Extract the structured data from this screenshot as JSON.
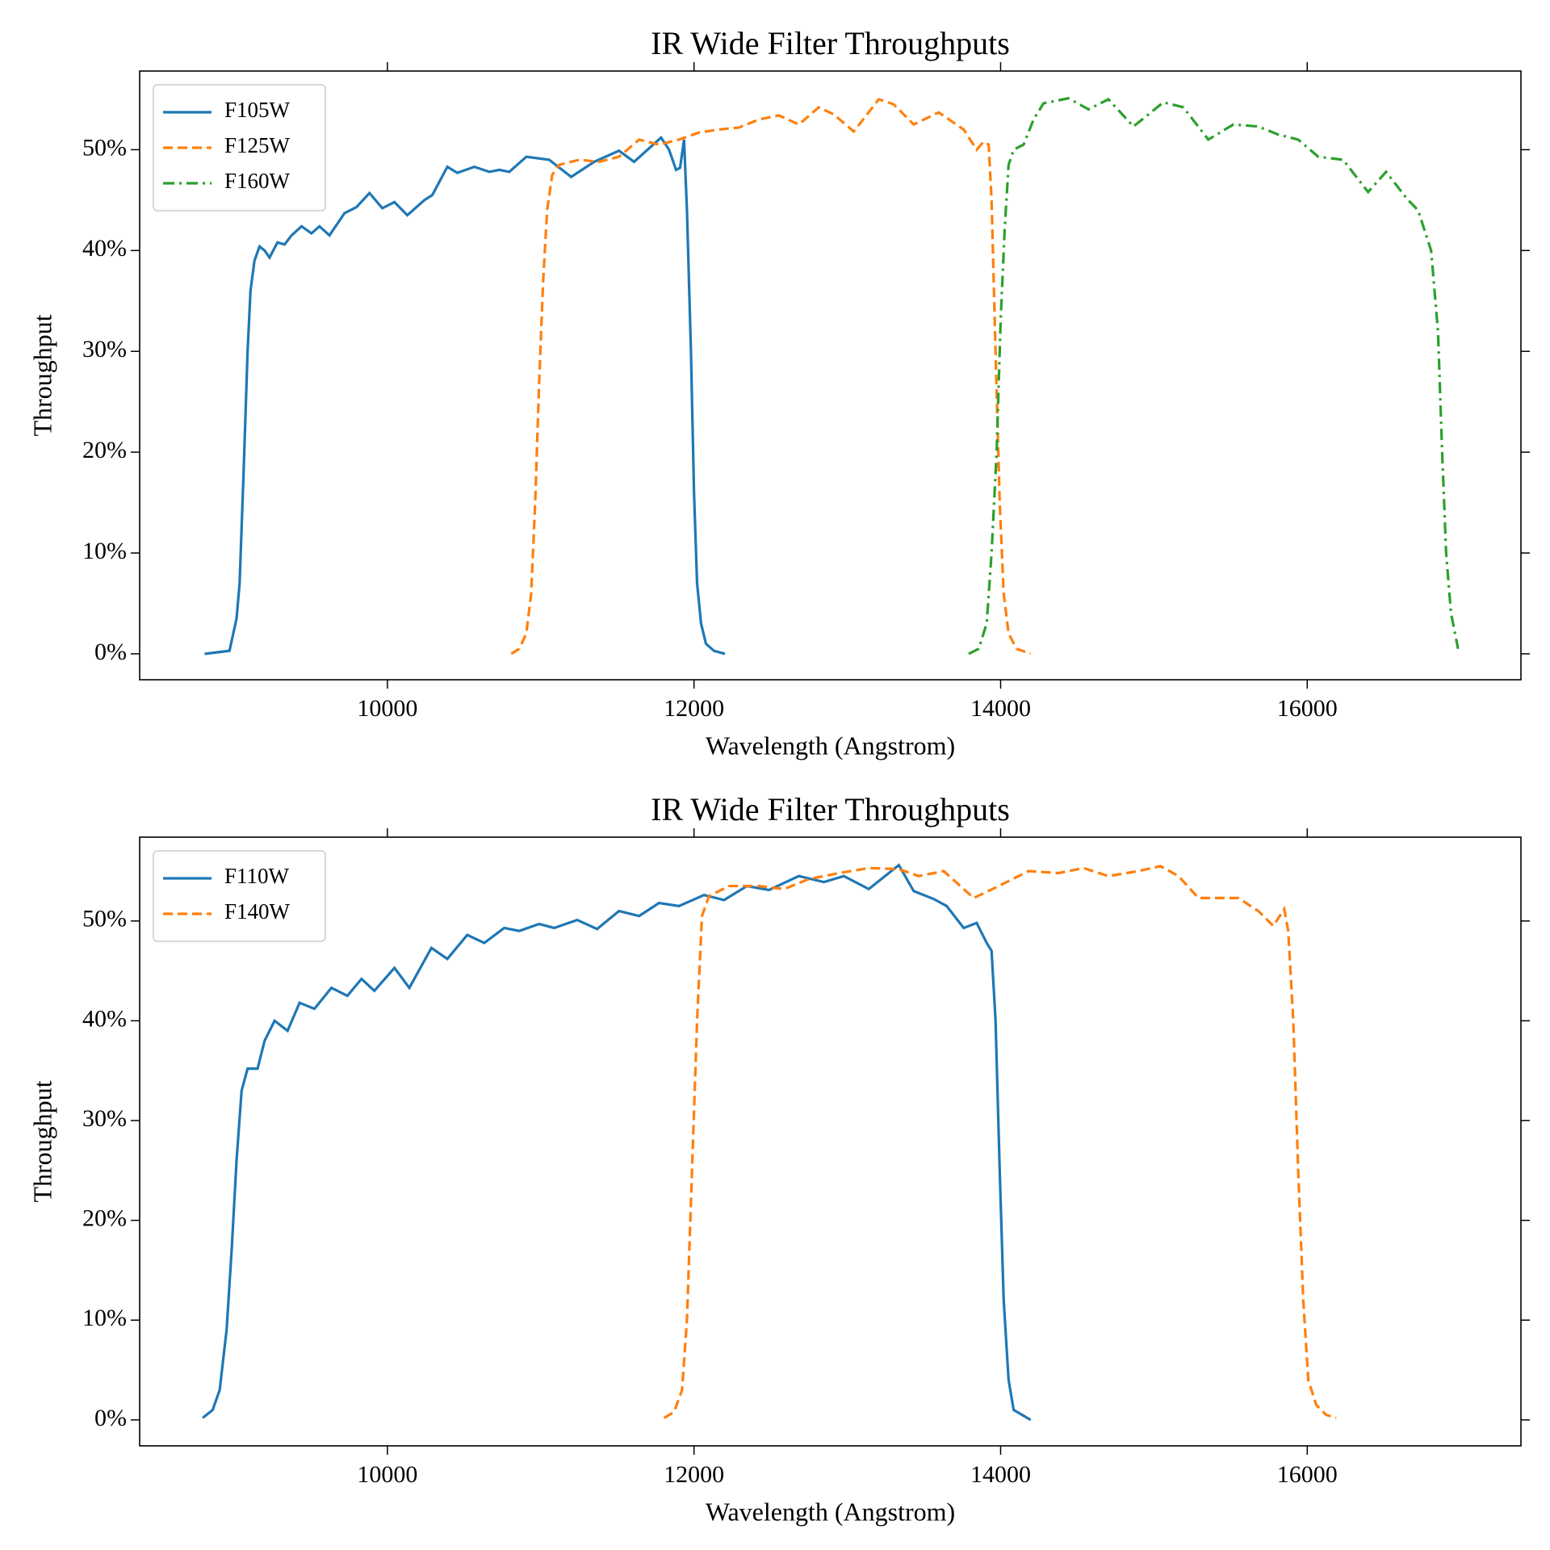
{
  "chart_data": [
    {
      "type": "line",
      "title": "IR Wide Filter Throughputs",
      "xlabel": "Wavelength (Angstrom)",
      "ylabel": "Throughput",
      "xlim": [
        8384,
        17394
      ],
      "xticks": [
        10000,
        12000,
        14000,
        16000
      ],
      "ylim": [
        -2.57,
        57.8
      ],
      "yticks": [
        {
          "value": 0,
          "label": "0%"
        },
        {
          "value": 10,
          "label": "10%"
        },
        {
          "value": 20,
          "label": "20%"
        },
        {
          "value": 30,
          "label": "30%"
        },
        {
          "value": 40,
          "label": "40%"
        },
        {
          "value": 50,
          "label": "50%"
        }
      ],
      "legend": "upper left",
      "series": [
        {
          "name": "F105W",
          "color": "#1f77b4",
          "linestyle": "solid",
          "x": [
            8808,
            8970,
            9016,
            9036,
            9062,
            9088,
            9107,
            9133,
            9166,
            9199,
            9231,
            9283,
            9329,
            9375,
            9440,
            9505,
            9557,
            9622,
            9720,
            9798,
            9883,
            9967,
            10046,
            10130,
            10241,
            10293,
            10391,
            10456,
            10567,
            10665,
            10730,
            10795,
            10906,
            11055,
            11199,
            11349,
            11511,
            11609,
            11785,
            11837,
            11883,
            11909,
            11935,
            11954,
            11980,
            12000,
            12020,
            12046,
            12078,
            12130,
            12202
          ],
          "values": [
            0,
            0.3,
            3.5,
            7,
            18,
            30,
            36,
            39,
            40.4,
            40,
            39.3,
            40.8,
            40.6,
            41.5,
            42.4,
            41.7,
            42.4,
            41.5,
            43.7,
            44.3,
            45.7,
            44.2,
            44.8,
            43.5,
            45,
            45.5,
            48.3,
            47.7,
            48.3,
            47.8,
            48,
            47.8,
            49.3,
            49,
            47.3,
            48.8,
            49.9,
            48.8,
            51.2,
            50,
            48,
            48.2,
            51,
            44,
            30,
            16,
            7,
            3,
            1,
            0.3,
            0
          ]
        },
        {
          "name": "F125W",
          "color": "#ff7f0e",
          "linestyle": "dashed",
          "x": [
            10808,
            10860,
            10906,
            10938,
            10964,
            10990,
            11016,
            11042,
            11075,
            11121,
            11251,
            11381,
            11511,
            11642,
            11772,
            11902,
            12033,
            12163,
            12293,
            12424,
            12554,
            12684,
            12814,
            12912,
            13042,
            13205,
            13303,
            13433,
            13596,
            13759,
            13844,
            13889,
            13922,
            13941,
            13967,
            13994,
            14020,
            14052,
            14104,
            14196
          ],
          "values": [
            0,
            0.5,
            2,
            6,
            15,
            27,
            37,
            44,
            47.5,
            48.5,
            49,
            48.8,
            49.3,
            51,
            50.5,
            51,
            51.7,
            52,
            52.2,
            53,
            53.4,
            52.5,
            54.2,
            53.5,
            51.8,
            55,
            54.5,
            52.5,
            53.7,
            52,
            50,
            50.8,
            50.5,
            45,
            30,
            15,
            6,
            2,
            0.5,
            0
          ]
        },
        {
          "name": "F160W",
          "color": "#2ca02c",
          "linestyle": "dashdot",
          "x": [
            13792,
            13857,
            13909,
            13941,
            13974,
            14000,
            14026,
            14052,
            14085,
            14150,
            14215,
            14280,
            14443,
            14573,
            14703,
            14866,
            14964,
            15062,
            15192,
            15355,
            15518,
            15681,
            15811,
            15941,
            16072,
            16234,
            16397,
            16514,
            16658,
            16723,
            16808,
            16853,
            16880,
            16906,
            16938,
            16984
          ],
          "values": [
            0,
            0.5,
            3,
            10,
            20,
            33,
            42,
            48.5,
            50,
            50.5,
            53,
            54.6,
            55.1,
            54,
            55,
            52.3,
            53.5,
            54.7,
            54.2,
            51,
            52.5,
            52.3,
            51.5,
            51,
            49.3,
            49,
            45.8,
            47.8,
            45,
            44,
            40,
            32,
            20,
            10,
            4,
            0.5
          ]
        }
      ]
    },
    {
      "type": "line",
      "title": "IR Wide Filter Throughputs",
      "xlabel": "Wavelength (Angstrom)",
      "ylabel": "Throughput",
      "xlim": [
        8384,
        17394
      ],
      "xticks": [
        10000,
        12000,
        14000,
        16000
      ],
      "ylim": [
        -2.6,
        58.4
      ],
      "yticks": [
        {
          "value": 0,
          "label": "0%"
        },
        {
          "value": 10,
          "label": "10%"
        },
        {
          "value": 20,
          "label": "20%"
        },
        {
          "value": 30,
          "label": "30%"
        },
        {
          "value": 40,
          "label": "40%"
        },
        {
          "value": 50,
          "label": "50%"
        }
      ],
      "legend": "upper left",
      "series": [
        {
          "name": "F110W",
          "color": "#1f77b4",
          "linestyle": "solid",
          "x": [
            8795,
            8860,
            8906,
            8951,
            8984,
            9016,
            9049,
            9088,
            9153,
            9199,
            9264,
            9349,
            9427,
            9524,
            9635,
            9739,
            9831,
            9915,
            10046,
            10143,
            10287,
            10391,
            10521,
            10632,
            10762,
            10860,
            10990,
            11088,
            11238,
            11368,
            11511,
            11642,
            11772,
            11902,
            12065,
            12196,
            12345,
            12489,
            12684,
            12847,
            12977,
            13140,
            13336,
            13433,
            13564,
            13648,
            13759,
            13844,
            13909,
            13941,
            13967,
            13994,
            14020,
            14052,
            14085,
            14196
          ],
          "values": [
            0.2,
            1,
            3,
            9,
            17,
            26,
            33,
            35.2,
            35.2,
            38,
            40,
            39,
            41.8,
            41.2,
            43.3,
            42.5,
            44.2,
            43,
            45.3,
            43.3,
            47.3,
            46.2,
            48.6,
            47.8,
            49.3,
            49,
            49.7,
            49.3,
            50.1,
            49.2,
            51,
            50.5,
            51.8,
            51.5,
            52.6,
            52.1,
            53.5,
            53.1,
            54.5,
            53.9,
            54.5,
            53.2,
            55.6,
            53,
            52.2,
            51.5,
            49.3,
            49.8,
            47.8,
            47,
            40,
            25,
            12,
            4,
            1,
            0
          ]
        },
        {
          "name": "F140W",
          "color": "#ff7f0e",
          "linestyle": "dashed",
          "x": [
            11805,
            11870,
            11922,
            11954,
            11987,
            12020,
            12052,
            12098,
            12228,
            12424,
            12587,
            12749,
            12945,
            13140,
            13336,
            13466,
            13629,
            13824,
            13987,
            14183,
            14378,
            14541,
            14703,
            14899,
            15042,
            15160,
            15290,
            15551,
            15681,
            15779,
            15850,
            15876,
            15909,
            15941,
            15974,
            16007,
            16059,
            16124,
            16189
          ],
          "values": [
            0.2,
            0.8,
            3,
            10,
            25,
            40,
            50.5,
            52.5,
            53.5,
            53.5,
            53.2,
            54.2,
            54.8,
            55.3,
            55.2,
            54.5,
            55,
            52.3,
            53.5,
            55,
            54.8,
            55.3,
            54.5,
            55,
            55.5,
            54.5,
            52.3,
            52.3,
            51,
            49.5,
            51.2,
            49,
            40,
            25,
            12,
            4,
            1.5,
            0.5,
            0.2
          ]
        }
      ]
    }
  ]
}
